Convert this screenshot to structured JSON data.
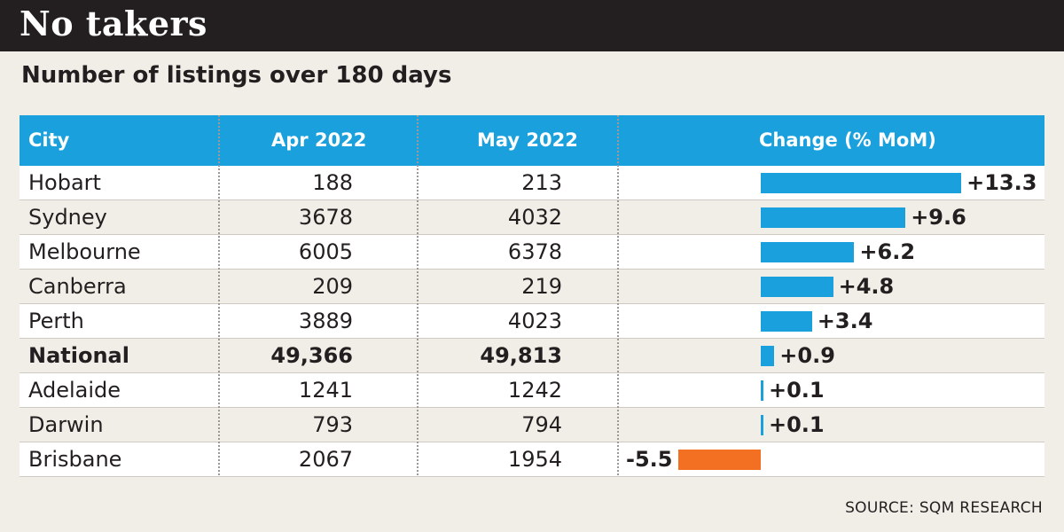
{
  "header": {
    "title": "No takers",
    "subtitle": "Number of listings over 180 days"
  },
  "table": {
    "columns": [
      "City",
      "Apr 2022",
      "May 2022",
      "Change (% MoM)"
    ],
    "rows": [
      {
        "city": "Hobart",
        "apr": "188",
        "may": "213",
        "change_label": "+13.3",
        "change": 13.3,
        "bold": false
      },
      {
        "city": "Sydney",
        "apr": "3678",
        "may": "4032",
        "change_label": "+9.6",
        "change": 9.6,
        "bold": false
      },
      {
        "city": "Melbourne",
        "apr": "6005",
        "may": "6378",
        "change_label": "+6.2",
        "change": 6.2,
        "bold": false
      },
      {
        "city": "Canberra",
        "apr": "209",
        "may": "219",
        "change_label": "+4.8",
        "change": 4.8,
        "bold": false
      },
      {
        "city": "Perth",
        "apr": "3889",
        "may": "4023",
        "change_label": "+3.4",
        "change": 3.4,
        "bold": false
      },
      {
        "city": "National",
        "apr": "49,366",
        "may": "49,813",
        "change_label": "+0.9",
        "change": 0.9,
        "bold": true
      },
      {
        "city": "Adelaide",
        "apr": "1241",
        "may": "1242",
        "change_label": "+0.1",
        "change": 0.1,
        "bold": false
      },
      {
        "city": "Darwin",
        "apr": "793",
        "may": "794",
        "change_label": "+0.1",
        "change": 0.1,
        "bold": false
      },
      {
        "city": "Brisbane",
        "apr": "2067",
        "may": "1954",
        "change_label": "-5.5",
        "change": -5.5,
        "bold": false
      }
    ]
  },
  "footer": {
    "source": "SOURCE: SQM RESEARCH"
  },
  "colors": {
    "header_bg": "#1aa1dd",
    "positive_bar": "#1aa1dd",
    "negative_bar": "#f36f21",
    "banner_bg": "#231f20"
  },
  "chart_data": {
    "type": "table",
    "title": "No takers",
    "subtitle": "Number of listings over 180 days",
    "columns": [
      "City",
      "Apr 2022",
      "May 2022",
      "Change (% MoM)"
    ],
    "categories": [
      "Hobart",
      "Sydney",
      "Melbourne",
      "Canberra",
      "Perth",
      "National",
      "Adelaide",
      "Darwin",
      "Brisbane"
    ],
    "series": [
      {
        "name": "Apr 2022",
        "values": [
          188,
          3678,
          6005,
          209,
          3889,
          49366,
          1241,
          793,
          2067
        ]
      },
      {
        "name": "May 2022",
        "values": [
          213,
          4032,
          6378,
          219,
          4023,
          49813,
          1242,
          794,
          1954
        ]
      },
      {
        "name": "Change (% MoM)",
        "values": [
          13.3,
          9.6,
          6.2,
          4.8,
          3.4,
          0.9,
          0.1,
          0.1,
          -5.5
        ]
      }
    ],
    "source": "SOURCE: SQM RESEARCH"
  }
}
